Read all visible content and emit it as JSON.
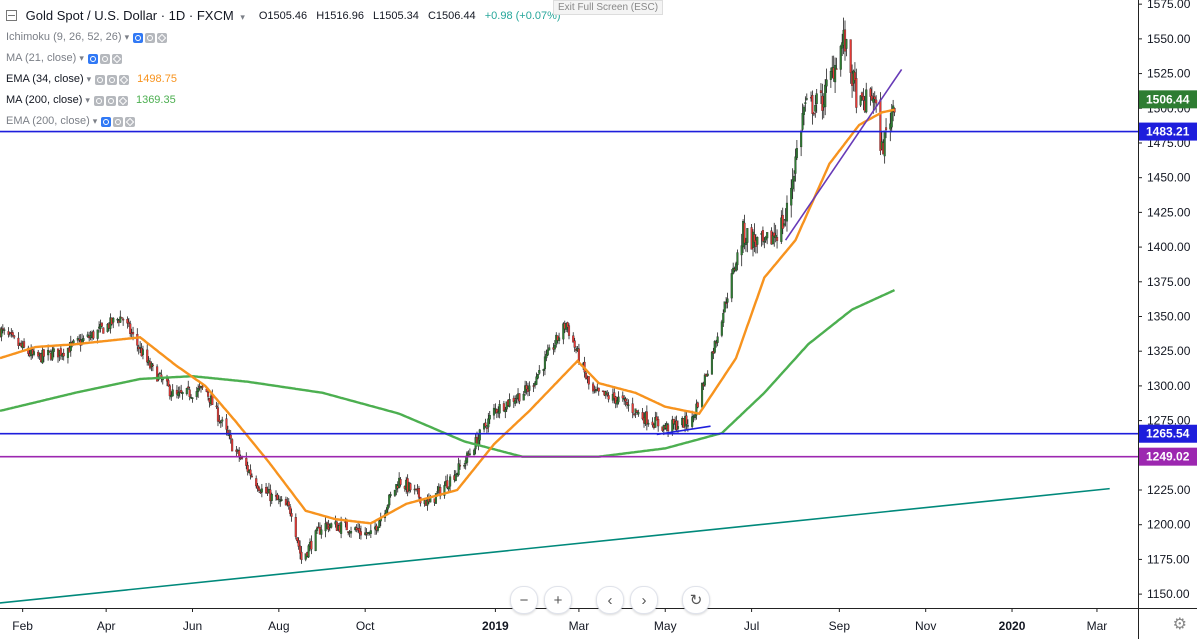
{
  "symbol": {
    "title": "Gold Spot / U.S. Dollar · 1D · FXCM",
    "open": "O1505.46",
    "high": "H1516.96",
    "low": "L1505.34",
    "close": "C1506.44",
    "change": "+0.98 (+0.07%)",
    "up_color": "#26a69a"
  },
  "exit_fullscreen": "Exit Full Screen (ESC)",
  "indicators": [
    {
      "label": "Ichimoku (9, 26, 52, 26)",
      "value": "",
      "visible": false
    },
    {
      "label": "MA (21, close)",
      "value": "",
      "visible": false
    },
    {
      "label": "EMA (34, close)",
      "value": "1498.75",
      "value_color": "#f7931e",
      "visible": true
    },
    {
      "label": "MA (200, close)",
      "value": "1369.35",
      "value_color": "#4caf50",
      "visible": true
    },
    {
      "label": "EMA (200, close)",
      "value": "",
      "visible": false
    }
  ],
  "zoom_controls": {
    "zoom_out": "−",
    "zoom_in": "+",
    "back": "‹",
    "forward": "›",
    "reset": "↻"
  },
  "icons": [
    "chevron-down-icon",
    "eye-icon",
    "settings-icon",
    "close-icon",
    "reset-icon",
    "gear-icon"
  ],
  "chart_data": {
    "type": "candlestick",
    "ylim": [
      1140,
      1578
    ],
    "y_ticks": [
      1150,
      1175,
      1200,
      1225,
      1250,
      1275,
      1300,
      1325,
      1350,
      1375,
      1400,
      1425,
      1450,
      1475,
      1500,
      1525,
      1550,
      1575
    ],
    "x_tick_labels": [
      "Feb",
      "Apr",
      "Jun",
      "Aug",
      "Oct",
      "2019",
      "Mar",
      "May",
      "Jul",
      "Sep",
      "Nov",
      "2020",
      "Mar"
    ],
    "x_tick_dates": [
      "2018-02-01",
      "2018-04-01",
      "2018-06-01",
      "2018-08-01",
      "2018-10-01",
      "2019-01-01",
      "2019-03-01",
      "2019-05-01",
      "2019-07-01",
      "2019-09-01",
      "2019-11-01",
      "2020-01-01",
      "2020-03-01"
    ],
    "x_bold_labels": [
      "2019",
      "2020"
    ],
    "date_range": [
      "2018-01-16",
      "2020-03-30"
    ],
    "close_anchors": [
      [
        "2018-01-16",
        1340
      ],
      [
        "2018-02-10",
        1320
      ],
      [
        "2018-03-01",
        1325
      ],
      [
        "2018-03-20",
        1335
      ],
      [
        "2018-04-12",
        1350
      ],
      [
        "2018-05-01",
        1315
      ],
      [
        "2018-05-20",
        1292
      ],
      [
        "2018-06-10",
        1298
      ],
      [
        "2018-06-30",
        1255
      ],
      [
        "2018-07-20",
        1225
      ],
      [
        "2018-08-10",
        1210
      ],
      [
        "2018-08-17",
        1175
      ],
      [
        "2018-09-01",
        1200
      ],
      [
        "2018-09-20",
        1198
      ],
      [
        "2018-10-05",
        1192
      ],
      [
        "2018-10-25",
        1232
      ],
      [
        "2018-11-15",
        1215
      ],
      [
        "2018-12-10",
        1245
      ],
      [
        "2018-12-31",
        1282
      ],
      [
        "2019-01-25",
        1298
      ],
      [
        "2019-02-20",
        1345
      ],
      [
        "2019-03-10",
        1295
      ],
      [
        "2019-03-30",
        1290
      ],
      [
        "2019-04-15",
        1278
      ],
      [
        "2019-05-01",
        1270
      ],
      [
        "2019-05-20",
        1275
      ],
      [
        "2019-06-05",
        1330
      ],
      [
        "2019-06-25",
        1410
      ],
      [
        "2019-07-10",
        1400
      ],
      [
        "2019-07-25",
        1420
      ],
      [
        "2019-08-07",
        1500
      ],
      [
        "2019-08-20",
        1505
      ],
      [
        "2019-09-04",
        1550
      ],
      [
        "2019-09-15",
        1500
      ],
      [
        "2019-09-25",
        1510
      ],
      [
        "2019-10-01",
        1470
      ],
      [
        "2019-10-10",
        1506
      ]
    ],
    "ema34_anchors": [
      [
        "2018-01-16",
        1320
      ],
      [
        "2018-02-10",
        1328
      ],
      [
        "2018-03-10",
        1330
      ],
      [
        "2018-04-25",
        1335
      ],
      [
        "2018-05-20",
        1315
      ],
      [
        "2018-06-10",
        1300
      ],
      [
        "2018-07-01",
        1275
      ],
      [
        "2018-07-25",
        1245
      ],
      [
        "2018-08-20",
        1210
      ],
      [
        "2018-09-10",
        1204
      ],
      [
        "2018-10-05",
        1201
      ],
      [
        "2018-10-30",
        1215
      ],
      [
        "2018-12-05",
        1225
      ],
      [
        "2018-12-31",
        1258
      ],
      [
        "2019-01-25",
        1282
      ],
      [
        "2019-02-28",
        1318
      ],
      [
        "2019-03-15",
        1302
      ],
      [
        "2019-04-10",
        1295
      ],
      [
        "2019-05-01",
        1285
      ],
      [
        "2019-05-25",
        1280
      ],
      [
        "2019-06-20",
        1320
      ],
      [
        "2019-07-10",
        1378
      ],
      [
        "2019-08-01",
        1405
      ],
      [
        "2019-08-25",
        1460
      ],
      [
        "2019-09-15",
        1488
      ],
      [
        "2019-10-01",
        1497
      ],
      [
        "2019-10-10",
        1499
      ]
    ],
    "ma200_anchors": [
      [
        "2018-01-16",
        1282
      ],
      [
        "2018-03-10",
        1295
      ],
      [
        "2018-04-25",
        1305
      ],
      [
        "2018-06-01",
        1307
      ],
      [
        "2018-07-10",
        1303
      ],
      [
        "2018-09-01",
        1295
      ],
      [
        "2018-10-25",
        1280
      ],
      [
        "2018-12-10",
        1260
      ],
      [
        "2019-01-20",
        1249
      ],
      [
        "2019-03-15",
        1249
      ],
      [
        "2019-05-01",
        1255
      ],
      [
        "2019-06-10",
        1266
      ],
      [
        "2019-07-10",
        1295
      ],
      [
        "2019-08-10",
        1330
      ],
      [
        "2019-09-10",
        1355
      ],
      [
        "2019-10-10",
        1369
      ]
    ],
    "horizontal_lines": [
      {
        "price": 1483.21,
        "label": "1483.21",
        "color": "#1e1edc"
      },
      {
        "price": 1265.54,
        "label": "1265.54",
        "color": "#1e1edc"
      },
      {
        "price": 1249.02,
        "label": "1249.02",
        "color": "#9c27b0"
      }
    ],
    "last_price": {
      "price": 1506.44,
      "label": "1506.44",
      "color": "#2e7d32"
    },
    "trend_lines": [
      {
        "from": [
          "2018-01-10",
          1143
        ],
        "to": [
          "2020-03-10",
          1226
        ],
        "color": "#00897b"
      },
      {
        "from": [
          "2019-07-25",
          1405
        ],
        "to": [
          "2019-10-15",
          1528
        ],
        "color": "#673ab7"
      },
      {
        "from": [
          "2019-04-25",
          1265
        ],
        "to": [
          "2019-06-02",
          1271
        ],
        "color": "#1e1edc"
      }
    ]
  }
}
